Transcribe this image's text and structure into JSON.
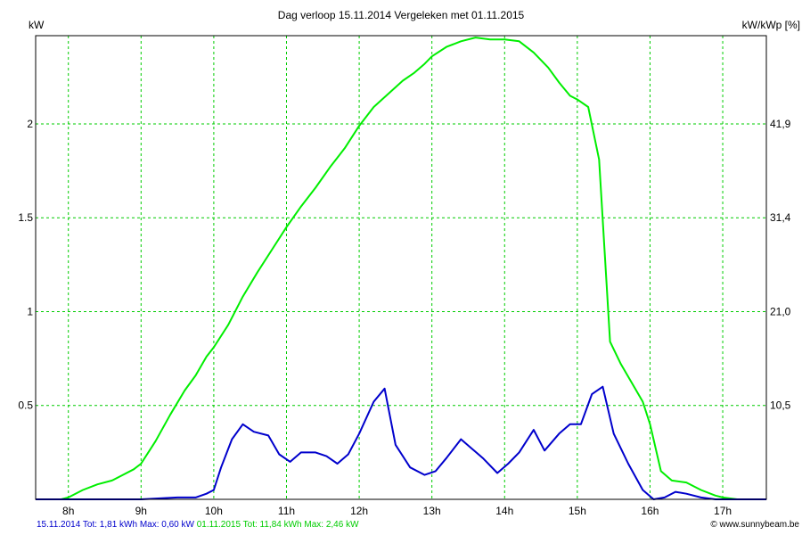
{
  "chart_data": {
    "type": "line",
    "title": "Dag  verloop 15.11.2014   Vergeleken met 01.11.2015",
    "ylabel_left": "kW",
    "ylabel_right": "kW/kWp [%]",
    "xlim": [
      7.55,
      17.6
    ],
    "ylim": [
      0,
      2.47
    ],
    "x_ticks": [
      {
        "x": 8,
        "label": "8h"
      },
      {
        "x": 9,
        "label": "9h"
      },
      {
        "x": 10,
        "label": "10h"
      },
      {
        "x": 11,
        "label": "11h"
      },
      {
        "x": 12,
        "label": "12h"
      },
      {
        "x": 13,
        "label": "13h"
      },
      {
        "x": 14,
        "label": "14h"
      },
      {
        "x": 15,
        "label": "15h"
      },
      {
        "x": 16,
        "label": "16h"
      },
      {
        "x": 17,
        "label": "17h"
      }
    ],
    "y_ticks_left": [
      {
        "y": 0.5,
        "label": "0.5"
      },
      {
        "y": 1,
        "label": "1"
      },
      {
        "y": 1.5,
        "label": "1.5"
      },
      {
        "y": 2,
        "label": "2"
      }
    ],
    "y_ticks_right": [
      {
        "y": 0.5,
        "label": "10,5"
      },
      {
        "y": 1,
        "label": "21,0"
      },
      {
        "y": 1.5,
        "label": "31,4"
      },
      {
        "y": 2,
        "label": "41,9"
      }
    ],
    "grid": true,
    "series": [
      {
        "color": "#00ee00",
        "x": [
          7.55,
          7.9,
          8.0,
          8.2,
          8.4,
          8.6,
          8.75,
          8.9,
          9.0,
          9.2,
          9.4,
          9.6,
          9.75,
          9.9,
          10.0,
          10.2,
          10.4,
          10.6,
          10.8,
          11.0,
          11.2,
          11.4,
          11.6,
          11.8,
          12.0,
          12.2,
          12.4,
          12.6,
          12.75,
          12.9,
          13.0,
          13.2,
          13.4,
          13.6,
          13.8,
          14.0,
          14.2,
          14.4,
          14.6,
          14.75,
          14.9,
          15.0,
          15.15,
          15.3,
          15.45,
          15.6,
          15.75,
          15.9,
          16.0,
          16.15,
          16.3,
          16.5,
          16.7,
          16.9,
          17.0,
          17.2,
          17.6
        ],
        "y": [
          0,
          0,
          0.01,
          0.05,
          0.08,
          0.1,
          0.13,
          0.16,
          0.19,
          0.31,
          0.45,
          0.58,
          0.66,
          0.76,
          0.81,
          0.93,
          1.08,
          1.21,
          1.33,
          1.45,
          1.56,
          1.66,
          1.77,
          1.87,
          1.99,
          2.09,
          2.16,
          2.23,
          2.27,
          2.32,
          2.36,
          2.41,
          2.44,
          2.46,
          2.45,
          2.45,
          2.44,
          2.38,
          2.3,
          2.22,
          2.15,
          2.13,
          2.09,
          1.81,
          0.84,
          0.72,
          0.62,
          0.52,
          0.4,
          0.15,
          0.1,
          0.09,
          0.05,
          0.02,
          0.01,
          0,
          0
        ]
      },
      {
        "color": "#0000cc",
        "x": [
          7.55,
          8.5,
          9.0,
          9.5,
          9.75,
          9.9,
          10.0,
          10.1,
          10.25,
          10.4,
          10.55,
          10.75,
          10.9,
          11.05,
          11.2,
          11.4,
          11.55,
          11.7,
          11.85,
          12.0,
          12.2,
          12.35,
          12.5,
          12.7,
          12.9,
          13.05,
          13.2,
          13.4,
          13.55,
          13.7,
          13.9,
          14.05,
          14.2,
          14.4,
          14.55,
          14.75,
          14.9,
          15.05,
          15.2,
          15.35,
          15.5,
          15.7,
          15.9,
          16.05,
          16.2,
          16.35,
          16.5,
          16.7,
          16.9,
          17.2,
          17.6
        ],
        "y": [
          0,
          0,
          0,
          0.01,
          0.01,
          0.03,
          0.05,
          0.17,
          0.32,
          0.4,
          0.36,
          0.34,
          0.24,
          0.2,
          0.25,
          0.25,
          0.23,
          0.19,
          0.24,
          0.35,
          0.52,
          0.59,
          0.29,
          0.17,
          0.13,
          0.15,
          0.22,
          0.32,
          0.27,
          0.22,
          0.14,
          0.19,
          0.25,
          0.37,
          0.26,
          0.35,
          0.4,
          0.4,
          0.56,
          0.6,
          0.35,
          0.19,
          0.05,
          0.0,
          0.01,
          0.04,
          0.03,
          0.01,
          0,
          0,
          0
        ]
      }
    ]
  },
  "footer": {
    "blue_text": "15.11.2014 Tot: 1,81 kWh Max: 0,60 kW",
    "green_text": "01.11.2015 Tot: 11,84 kWh Max: 2,46 kW",
    "credit": "© www.sunnybeam.be"
  }
}
